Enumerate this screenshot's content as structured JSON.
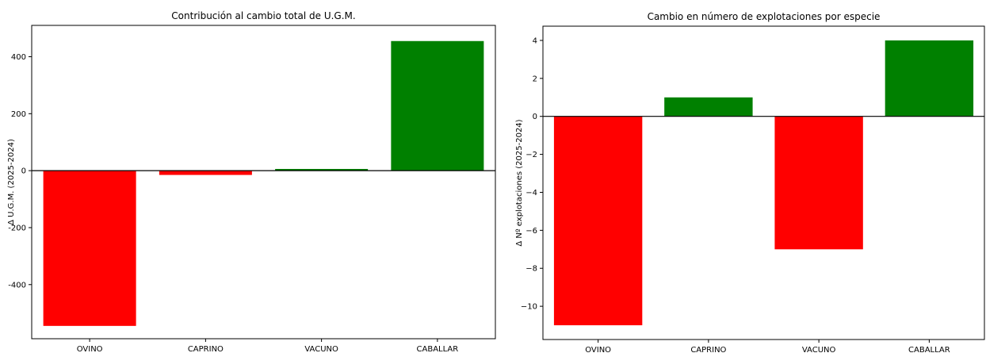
{
  "chart_data": [
    {
      "type": "bar",
      "title": "Contribución al cambio total de U.G.M.",
      "xlabel": "",
      "ylabel": "Δ U.G.M. (2025-2024)",
      "categories": [
        "OVINO",
        "CAPRINO",
        "VACUNO",
        "CABALLAR"
      ],
      "values": [
        -545,
        -15,
        6,
        455
      ],
      "bar_colors": [
        "#ff0000",
        "#ff0000",
        "#008000",
        "#008000"
      ],
      "ylim": [
        -590,
        510
      ],
      "yticks": [
        -400,
        -200,
        0,
        200,
        400
      ],
      "ytick_labels": [
        "-400",
        "-200",
        "0",
        "200",
        "400"
      ],
      "zero_line": true,
      "grid": false
    },
    {
      "type": "bar",
      "title": "Cambio en número de explotaciones por especie",
      "xlabel": "",
      "ylabel": "Δ Nº explotaciones (2025-2024)",
      "categories": [
        "OVINO",
        "CAPRINO",
        "VACUNO",
        "CABALLAR"
      ],
      "values": [
        -11,
        1,
        -7,
        4
      ],
      "bar_colors": [
        "#ff0000",
        "#008000",
        "#ff0000",
        "#008000"
      ],
      "ylim": [
        -11.75,
        4.75
      ],
      "yticks": [
        -10,
        -8,
        -6,
        -4,
        -2,
        0,
        2,
        4
      ],
      "ytick_labels": [
        "−10",
        "−8",
        "−6",
        "−4",
        "−2",
        "0",
        "2",
        "4"
      ],
      "zero_line": true,
      "grid": false
    }
  ]
}
